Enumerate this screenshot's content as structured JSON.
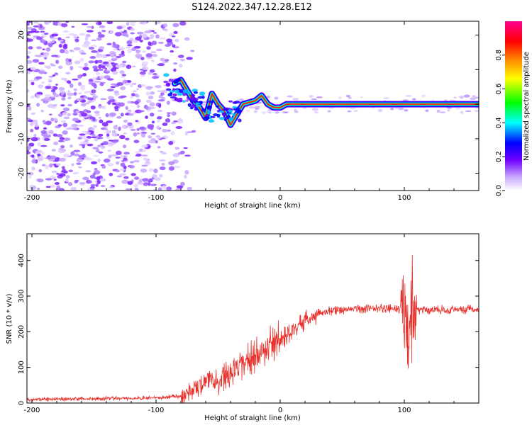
{
  "title": "S124.2022.347.12.28.E12",
  "chart_data": [
    {
      "type": "heatmap",
      "name": "spectrogram",
      "xlabel": "Height of straight line (km)",
      "ylabel": "Frequency (Hz)",
      "xlim": [
        -204,
        160
      ],
      "ylim": [
        -25,
        24
      ],
      "xticks": [
        -200,
        -100,
        0,
        100
      ],
      "xtick_labels": [
        "-200",
        "-100",
        "0",
        "100"
      ],
      "yticks": [
        -20,
        -10,
        0,
        10,
        20
      ],
      "ytick_labels": [
        "-20",
        "-10",
        "0",
        "10",
        "20"
      ],
      "noise_region_x": [
        -204,
        -75
      ],
      "signal_line": [
        {
          "x": -85,
          "f": 6
        },
        {
          "x": -80,
          "f": 7
        },
        {
          "x": -75,
          "f": 4
        },
        {
          "x": -70,
          "f": 1
        },
        {
          "x": -65,
          "f": -1
        },
        {
          "x": -60,
          "f": -4
        },
        {
          "x": -55,
          "f": 3
        },
        {
          "x": -50,
          "f": 0
        },
        {
          "x": -45,
          "f": -2
        },
        {
          "x": -40,
          "f": -6
        },
        {
          "x": -35,
          "f": -3
        },
        {
          "x": -30,
          "f": 0
        },
        {
          "x": -20,
          "f": 1
        },
        {
          "x": -15,
          "f": 2.5
        },
        {
          "x": -10,
          "f": 0
        },
        {
          "x": -5,
          "f": -1
        },
        {
          "x": 0,
          "f": -1
        },
        {
          "x": 5,
          "f": 0
        },
        {
          "x": 100,
          "f": 0
        },
        {
          "x": 160,
          "f": 0
        }
      ],
      "colorbar": {
        "label": "Normalized spectral amplitude",
        "range": [
          0,
          1
        ],
        "ticks": [
          0.0,
          0.2,
          0.4,
          0.6,
          0.8
        ],
        "tick_labels": [
          "0.0",
          "0.2",
          "0.4",
          "0.6",
          "0.8"
        ],
        "colormap": [
          "#ffffff",
          "#7000ff",
          "#0000ff",
          "#00ffff",
          "#00ff00",
          "#ffff00",
          "#ff8000",
          "#ff0000",
          "#ff0090"
        ]
      }
    },
    {
      "type": "line",
      "name": "snr",
      "xlabel": "Height of straight line (km)",
      "ylabel": "SNR (10 * v/v)",
      "xlim": [
        -204,
        160
      ],
      "ylim": [
        0,
        475
      ],
      "xticks": [
        -200,
        -100,
        0,
        100
      ],
      "xtick_labels": [
        "-200",
        "-100",
        "0",
        "100"
      ],
      "yticks": [
        0,
        100,
        200,
        300,
        400
      ],
      "ytick_labels": [
        "0",
        "100",
        "200",
        "300",
        "400"
      ],
      "color": "#e8302a",
      "series": [
        {
          "name": "SNR",
          "x": [
            -204,
            -150,
            -100,
            -80,
            -70,
            -60,
            -55,
            -50,
            -40,
            -30,
            -20,
            -10,
            0,
            10,
            20,
            30,
            40,
            50,
            60,
            70,
            80,
            90,
            95,
            100,
            103,
            105,
            108,
            110,
            120,
            140,
            160
          ],
          "y": [
            10,
            12,
            14,
            20,
            35,
            60,
            80,
            55,
            85,
            110,
            130,
            155,
            175,
            205,
            230,
            250,
            258,
            262,
            265,
            265,
            265,
            265,
            260,
            270,
            150,
            280,
            265,
            262,
            262,
            262,
            262
          ]
        }
      ]
    }
  ]
}
